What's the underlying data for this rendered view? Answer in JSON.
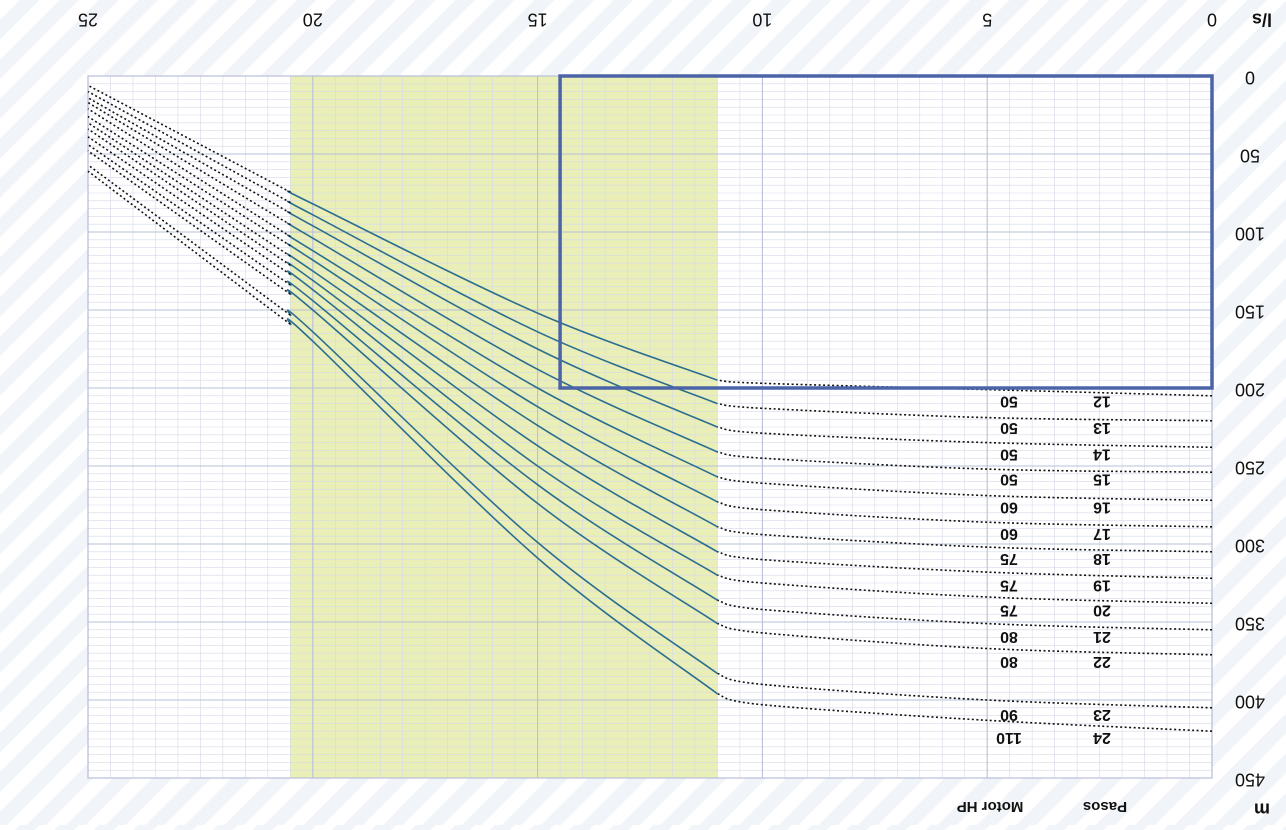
{
  "chart_data": {
    "type": "line",
    "orientation": "rotated-180",
    "xlabel": "l/s",
    "ylabel": "m",
    "xlim": [
      0,
      25
    ],
    "ylim": [
      0,
      450
    ],
    "x_ticks": [
      "0",
      "5",
      "10",
      "15",
      "20",
      "25"
    ],
    "y_ticks": [
      "0",
      "50",
      "100",
      "150",
      "200",
      "250",
      "300",
      "350",
      "400",
      "450"
    ],
    "grid": true,
    "table_headers": {
      "pasos": "Pasos",
      "motor": "Motor HP"
    },
    "operating_band": {
      "x_from": 11,
      "x_to": 20.5,
      "color": "#e9efb7"
    },
    "highlight_box": {
      "x_from": 0,
      "x_to": 14.5,
      "y_from": 0,
      "y_to": 200,
      "color": "#4b64a8"
    },
    "colors": {
      "curve": "#2c6e8e",
      "dotted": "#111111",
      "grid_major": "#b9bfd8",
      "grid_minor": "#d6dae8",
      "text": "#111111"
    },
    "series": [
      {
        "pasos": "12",
        "motor": "50",
        "points": [
          [
            0,
            205
          ],
          [
            5,
            201
          ],
          [
            10,
            197
          ],
          [
            11,
            195
          ],
          [
            15,
            152
          ],
          [
            20,
            82
          ],
          [
            25,
            6
          ]
        ]
      },
      {
        "pasos": "13",
        "motor": "50",
        "points": [
          [
            0,
            221
          ],
          [
            5,
            219
          ],
          [
            10,
            213
          ],
          [
            11,
            210
          ],
          [
            15,
            164
          ],
          [
            20,
            89
          ],
          [
            25,
            10
          ]
        ]
      },
      {
        "pasos": "14",
        "motor": "50",
        "points": [
          [
            0,
            238
          ],
          [
            5,
            235
          ],
          [
            10,
            229
          ],
          [
            11,
            225
          ],
          [
            15,
            175
          ],
          [
            20,
            96
          ],
          [
            25,
            14
          ]
        ]
      },
      {
        "pasos": "15",
        "motor": "50",
        "points": [
          [
            0,
            254
          ],
          [
            5,
            252
          ],
          [
            10,
            245
          ],
          [
            11,
            241
          ],
          [
            15,
            188
          ],
          [
            20,
            104
          ],
          [
            25,
            17
          ]
        ]
      },
      {
        "pasos": "16",
        "motor": "60",
        "points": [
          [
            0,
            272
          ],
          [
            5,
            269
          ],
          [
            10,
            261
          ],
          [
            11,
            257
          ],
          [
            15,
            200
          ],
          [
            20,
            112
          ],
          [
            25,
            21
          ]
        ]
      },
      {
        "pasos": "17",
        "motor": "60",
        "points": [
          [
            0,
            289
          ],
          [
            5,
            286
          ],
          [
            10,
            278
          ],
          [
            11,
            273
          ],
          [
            15,
            212
          ],
          [
            20,
            118
          ],
          [
            25,
            26
          ]
        ]
      },
      {
        "pasos": "18",
        "motor": "75",
        "points": [
          [
            0,
            305
          ],
          [
            5,
            302
          ],
          [
            10,
            294
          ],
          [
            11,
            289
          ],
          [
            15,
            224
          ],
          [
            20,
            125
          ],
          [
            25,
            30
          ]
        ]
      },
      {
        "pasos": "19",
        "motor": "75",
        "points": [
          [
            0,
            322
          ],
          [
            5,
            318
          ],
          [
            10,
            310
          ],
          [
            11,
            305
          ],
          [
            15,
            237
          ],
          [
            20,
            131
          ],
          [
            25,
            34
          ]
        ]
      },
      {
        "pasos": "20",
        "motor": "75",
        "points": [
          [
            0,
            338
          ],
          [
            5,
            334
          ],
          [
            10,
            325
          ],
          [
            11,
            320
          ],
          [
            15,
            250
          ],
          [
            20,
            137
          ],
          [
            25,
            39
          ]
        ]
      },
      {
        "pasos": "21",
        "motor": "80",
        "points": [
          [
            0,
            355
          ],
          [
            5,
            351
          ],
          [
            10,
            342
          ],
          [
            11,
            336
          ],
          [
            15,
            262
          ],
          [
            20,
            144
          ],
          [
            25,
            44
          ]
        ]
      },
      {
        "pasos": "22",
        "motor": "80",
        "points": [
          [
            0,
            371
          ],
          [
            5,
            367
          ],
          [
            10,
            357
          ],
          [
            11,
            351
          ],
          [
            15,
            274
          ],
          [
            20,
            150
          ],
          [
            25,
            48
          ]
        ]
      },
      {
        "pasos": "23",
        "motor": "90",
        "points": [
          [
            0,
            405
          ],
          [
            5,
            400
          ],
          [
            10,
            390
          ],
          [
            11,
            383
          ],
          [
            15,
            299
          ],
          [
            20,
            164
          ],
          [
            25,
            57
          ]
        ]
      },
      {
        "pasos": "24",
        "motor": "110",
        "points": [
          [
            0,
            420
          ],
          [
            5,
            413
          ],
          [
            10,
            403
          ],
          [
            11,
            396
          ],
          [
            15,
            309
          ],
          [
            20,
            170
          ],
          [
            25,
            61
          ]
        ]
      }
    ]
  }
}
